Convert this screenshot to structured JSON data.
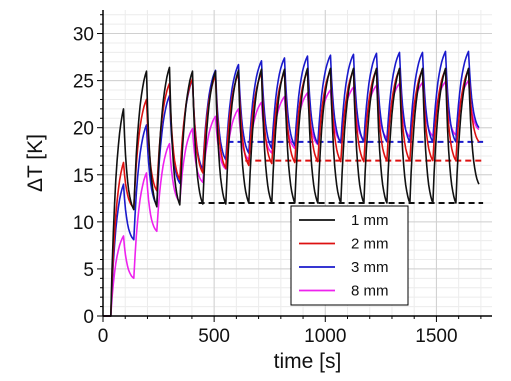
{
  "chart_data": {
    "type": "line",
    "xlabel": "time [s]",
    "ylabel": "ΔT [K]",
    "xlim": [
      0,
      1750
    ],
    "ylim": [
      0,
      32.5
    ],
    "x_ticks": [
      0,
      500,
      1000,
      1500
    ],
    "x_tick_labels": [
      "0",
      "500",
      "1000",
      "1500"
    ],
    "y_ticks": [
      0,
      5,
      10,
      15,
      20,
      25,
      30
    ],
    "y_tick_labels": [
      "0",
      "5",
      "10",
      "15",
      "20",
      "25",
      "30"
    ],
    "x_minor_step": 100,
    "y_minor_step": 1,
    "grid": true,
    "legend_position": "bottom-right",
    "cycle": {
      "start": 35,
      "period": 103.5,
      "rise": 57,
      "cycles": 16
    },
    "series": [
      {
        "name": "1 mm",
        "color": "#111111",
        "peaks": [
          22,
          26,
          26.4,
          26,
          26,
          26.1,
          26.2,
          26.2,
          26.3,
          26.3,
          26.3,
          26.3,
          26.3,
          26.3,
          26.3,
          26.3
        ],
        "troughs": [
          0,
          11.3,
          11.6,
          11.8,
          11.9,
          11.9,
          12,
          12,
          12,
          12,
          12,
          12,
          12,
          12,
          12,
          12,
          14
        ],
        "steady_level": 12,
        "steady_range": [
          430,
          1710
        ]
      },
      {
        "name": "2 mm",
        "color": "#dd1111",
        "peaks": [
          16.3,
          23,
          24.7,
          25.2,
          25.5,
          25.7,
          25.8,
          25.9,
          26,
          26.1,
          26.1,
          26.2,
          26.2,
          26.2,
          26.2,
          26.2
        ],
        "troughs": [
          0,
          11.5,
          13.3,
          14.5,
          15.2,
          15.7,
          16,
          16.2,
          16.3,
          16.4,
          16.4,
          16.4,
          16.5,
          16.5,
          16.5,
          16.5,
          18.5
        ],
        "steady_level": 16.5,
        "steady_range": [
          640,
          1710
        ]
      },
      {
        "name": "3 mm",
        "color": "#1a1acc",
        "peaks": [
          14,
          20.3,
          23.4,
          25.1,
          26.1,
          26.7,
          27.1,
          27.4,
          27.6,
          27.7,
          27.8,
          27.9,
          28,
          28,
          28.1,
          28.1
        ],
        "troughs": [
          0,
          8.1,
          11.8,
          14.1,
          15.6,
          16.6,
          17.3,
          17.8,
          18.1,
          18.3,
          18.4,
          18.5,
          18.5,
          18.5,
          18.5,
          18.5,
          20
        ],
        "steady_level": 18.5,
        "steady_range": [
          560,
          1710
        ]
      },
      {
        "name": "8 mm",
        "color": "#ee22ee",
        "peaks": [
          8.5,
          15.2,
          18.3,
          19.9,
          21.2,
          22,
          22.7,
          23.3,
          23.7,
          24,
          24.3,
          24.5,
          24.7,
          24.8,
          24.9,
          25
        ],
        "troughs": [
          0,
          4,
          9,
          12.1,
          14.2,
          15.6,
          16.6,
          17.3,
          17.8,
          18.2,
          18.5,
          18.7,
          18.9,
          19,
          19.1,
          19.2,
          19.8
        ],
        "steady_level": null,
        "steady_range": null
      }
    ]
  }
}
